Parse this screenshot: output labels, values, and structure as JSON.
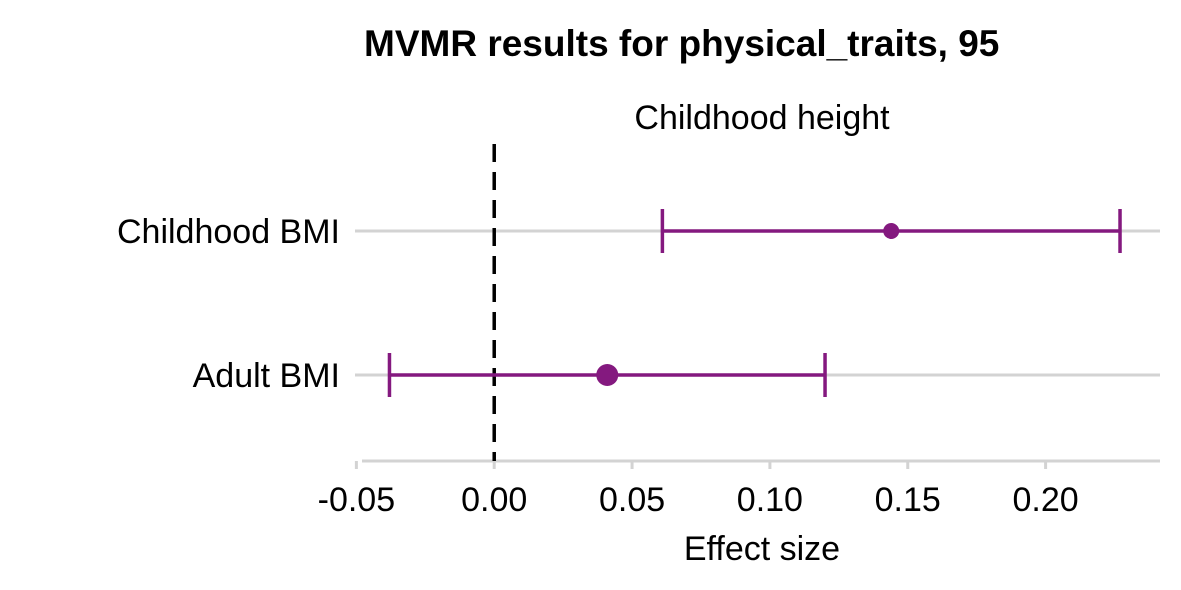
{
  "chart_data": {
    "type": "forest",
    "title": "MVMR results for physical_traits, 95",
    "facet_label": "Childhood height",
    "xlabel": "Effect size",
    "ylabel": "",
    "xlim": [
      -0.0505,
      0.2415
    ],
    "xticks": [
      -0.05,
      0.0,
      0.05,
      0.1,
      0.15,
      0.2
    ],
    "xtick_labels": [
      "-0.05",
      "0.00",
      "0.05",
      "0.10",
      "0.15",
      "0.20"
    ],
    "reference_line": 0,
    "grid": "horizontal-major",
    "legend": "none",
    "series": [
      {
        "values": [
          {
            "label": "Childhood BMI",
            "estimate": 0.144,
            "lower": 0.061,
            "upper": 0.227,
            "point_size": "small"
          },
          {
            "label": "Adult BMI",
            "estimate": 0.041,
            "lower": -0.038,
            "upper": 0.12,
            "point_size": "large"
          }
        ]
      }
    ]
  },
  "colors": {
    "estimate": "#84197f",
    "gridline": "#d3d3d3",
    "reference_line": "#000000",
    "text": "#000000"
  }
}
